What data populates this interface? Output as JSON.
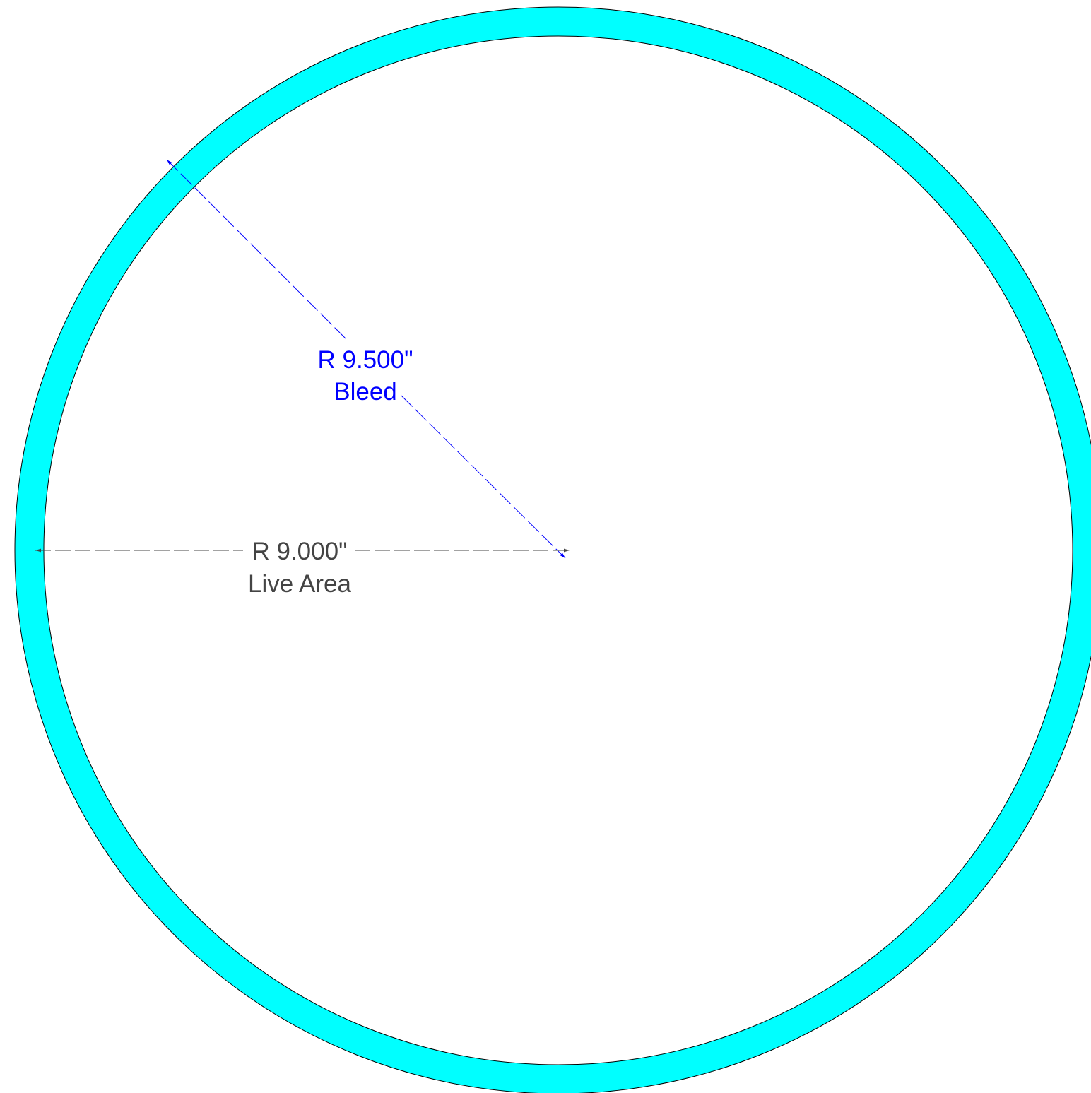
{
  "bleed": {
    "radius_label": "R 9.500\"",
    "name_label": "Bleed",
    "radius_in": 9.5,
    "fill_color": "#00FFFF",
    "dimension_color": "#0000FF"
  },
  "live_area": {
    "radius_label": "R 9.000\"",
    "name_label": "Live Area",
    "radius_in": 9.0,
    "fill_color": "#FFFFFF",
    "dimension_color": "#444444"
  },
  "outline_color": "#000000"
}
